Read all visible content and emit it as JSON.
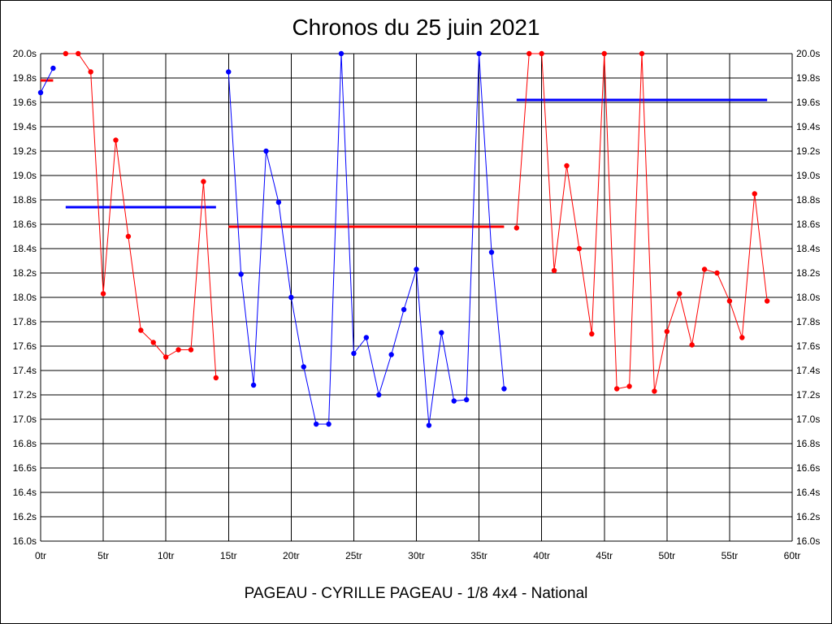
{
  "chart_data": {
    "type": "line",
    "title": "Chronos du 25 juin 2021",
    "footer": "PAGEAU - CYRILLE PAGEAU - 1/8 4x4 - National",
    "xlim": [
      0,
      60
    ],
    "ylim": [
      16.0,
      20.0
    ],
    "x_ticks": [
      {
        "value": 0,
        "label": "0tr"
      },
      {
        "value": 5,
        "label": "5tr"
      },
      {
        "value": 10,
        "label": "10tr"
      },
      {
        "value": 15,
        "label": "15tr"
      },
      {
        "value": 20,
        "label": "20tr"
      },
      {
        "value": 25,
        "label": "25tr"
      },
      {
        "value": 30,
        "label": "30tr"
      },
      {
        "value": 35,
        "label": "35tr"
      },
      {
        "value": 40,
        "label": "40tr"
      },
      {
        "value": 45,
        "label": "45tr"
      },
      {
        "value": 50,
        "label": "50tr"
      },
      {
        "value": 55,
        "label": "55tr"
      },
      {
        "value": 60,
        "label": "60tr"
      }
    ],
    "y_ticks": [
      {
        "value": 20.0,
        "label": "20.0s"
      },
      {
        "value": 19.8,
        "label": "19.8s"
      },
      {
        "value": 19.6,
        "label": "19.6s"
      },
      {
        "value": 19.4,
        "label": "19.4s"
      },
      {
        "value": 19.2,
        "label": "19.2s"
      },
      {
        "value": 19.0,
        "label": "19.0s"
      },
      {
        "value": 18.8,
        "label": "18.8s"
      },
      {
        "value": 18.6,
        "label": "18.6s"
      },
      {
        "value": 18.4,
        "label": "18.4s"
      },
      {
        "value": 18.2,
        "label": "18.2s"
      },
      {
        "value": 18.0,
        "label": "18.0s"
      },
      {
        "value": 17.8,
        "label": "17.8s"
      },
      {
        "value": 17.6,
        "label": "17.6s"
      },
      {
        "value": 17.4,
        "label": "17.4s"
      },
      {
        "value": 17.2,
        "label": "17.2s"
      },
      {
        "value": 17.0,
        "label": "17.0s"
      },
      {
        "value": 16.8,
        "label": "16.8s"
      },
      {
        "value": 16.6,
        "label": "16.6s"
      },
      {
        "value": 16.4,
        "label": "16.4s"
      },
      {
        "value": 16.2,
        "label": "16.2s"
      },
      {
        "value": 16.0,
        "label": "16.0s"
      }
    ],
    "grid": true,
    "series": [
      {
        "name": "serie-1",
        "color": "#0000ff",
        "x": [
          0,
          1
        ],
        "y": [
          19.68,
          19.88
        ]
      },
      {
        "name": "serie-2",
        "color": "#ff0000",
        "x": [
          2,
          3,
          4,
          5,
          6,
          7,
          8,
          9,
          10,
          11,
          12,
          13,
          14
        ],
        "y": [
          20.0,
          20.0,
          19.85,
          18.03,
          19.29,
          18.5,
          17.73,
          17.63,
          17.51,
          17.57,
          17.57,
          18.95,
          17.34
        ]
      },
      {
        "name": "serie-3",
        "color": "#0000ff",
        "x": [
          15,
          16,
          17,
          18,
          19,
          20,
          21,
          22,
          23,
          24,
          25,
          26,
          27,
          28,
          29,
          30,
          31,
          32,
          33,
          34,
          35,
          36,
          37
        ],
        "y": [
          19.85,
          18.19,
          17.28,
          19.2,
          18.78,
          18.0,
          17.43,
          16.96,
          16.96,
          20.0,
          17.54,
          17.67,
          17.2,
          17.53,
          17.9,
          18.23,
          16.95,
          17.71,
          17.15,
          17.16,
          20.0,
          18.37,
          17.25
        ]
      },
      {
        "name": "serie-4",
        "color": "#ff0000",
        "x": [
          38,
          39,
          40,
          41,
          42,
          43,
          44,
          45,
          46,
          47,
          48,
          49,
          50,
          51,
          52,
          53,
          54,
          55,
          56,
          57,
          58
        ],
        "y": [
          18.57,
          20.0,
          20.0,
          18.22,
          19.08,
          18.4,
          17.7,
          20.0,
          17.25,
          17.27,
          20.0,
          17.23,
          17.72,
          18.03,
          17.61,
          18.23,
          18.2,
          17.97,
          17.67,
          18.85,
          17.97
        ]
      }
    ],
    "average_lines": [
      {
        "color": "#ff0000",
        "x_start": 0,
        "x_end": 1,
        "y": 19.78
      },
      {
        "color": "#0000ff",
        "x_start": 2,
        "x_end": 14,
        "y": 18.74
      },
      {
        "color": "#ff0000",
        "x_start": 15,
        "x_end": 37,
        "y": 18.58
      },
      {
        "color": "#0000ff",
        "x_start": 38,
        "x_end": 58,
        "y": 19.62
      }
    ]
  }
}
